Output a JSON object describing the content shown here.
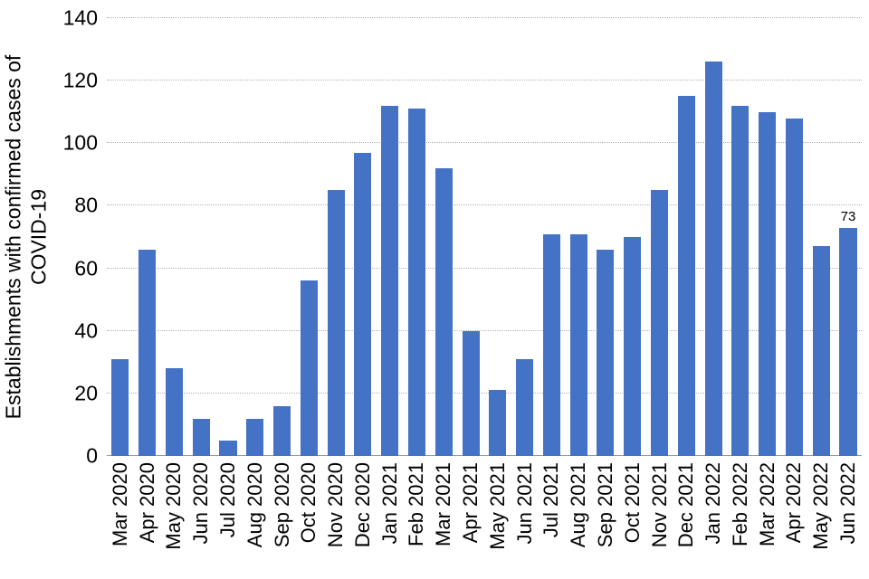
{
  "chart_data": {
    "type": "bar",
    "title": "",
    "xlabel": "",
    "ylabel": "Establishments with confirmed cases of COVID-19",
    "ylabel_lines": [
      "Establishments with confirmed cases of",
      "COVID-19"
    ],
    "categories": [
      "Mar 2020",
      "Apr 2020",
      "May 2020",
      "Jun 2020",
      "Jul 2020",
      "Aug 2020",
      "Sep 2020",
      "Oct 2020",
      "Nov 2020",
      "Dec 2020",
      "Jan 2021",
      "Feb 2021",
      "Mar 2021",
      "Apr 2021",
      "May 2021",
      "Jun 2021",
      "Jul 2021",
      "Aug 2021",
      "Sep 2021",
      "Oct 2021",
      "Nov 2021",
      "Dec 2021",
      "Jan 2022",
      "Feb 2022",
      "Mar 2022",
      "Apr 2022",
      "May 2022",
      "Jun 2022"
    ],
    "values": [
      31,
      66,
      28,
      12,
      5,
      12,
      16,
      56,
      85,
      97,
      112,
      111,
      92,
      40,
      21,
      31,
      71,
      71,
      66,
      70,
      85,
      115,
      126,
      112,
      110,
      108,
      67,
      73
    ],
    "ylim": [
      0,
      140
    ],
    "yticks": [
      0,
      20,
      40,
      60,
      80,
      100,
      120,
      140
    ],
    "bar_color": "#4472C4",
    "grid": true,
    "legend": false,
    "annotations": [
      {
        "category": "Jun 2022",
        "text": "73"
      }
    ]
  }
}
